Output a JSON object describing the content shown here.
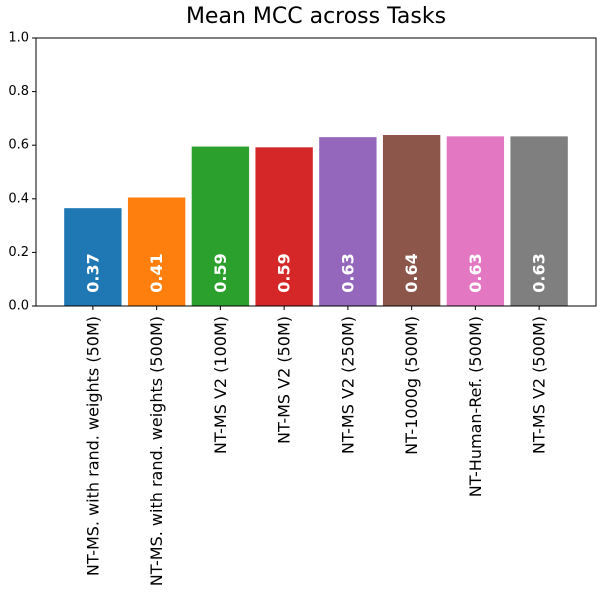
{
  "chart_data": {
    "type": "bar",
    "title": "Mean MCC across Tasks",
    "xlabel": "",
    "ylabel": "",
    "ylim": [
      0,
      1
    ],
    "yticks": [
      "0.0",
      "0.2",
      "0.4",
      "0.6",
      "0.8",
      "1.0"
    ],
    "grid": false,
    "categories": [
      "NT-MS. with rand. weights (50M)",
      "NT-MS. with rand. weights (500M)",
      "NT-MS V2 (100M)",
      "NT-MS V2 (50M)",
      "NT-MS V2 (250M)",
      "NT-1000g (500M)",
      "NT-Human-Ref. (500M)",
      "NT-MS V2 (500M)"
    ],
    "values": [
      0.365,
      0.405,
      0.595,
      0.592,
      0.63,
      0.638,
      0.633,
      0.633
    ],
    "value_labels": [
      "0.37",
      "0.41",
      "0.59",
      "0.59",
      "0.63",
      "0.64",
      "0.63",
      "0.63"
    ],
    "colors": [
      "#1f77b4",
      "#ff7f0e",
      "#2ca02c",
      "#d62728",
      "#9467bd",
      "#8c564b",
      "#e377c2",
      "#7f7f7f"
    ]
  }
}
